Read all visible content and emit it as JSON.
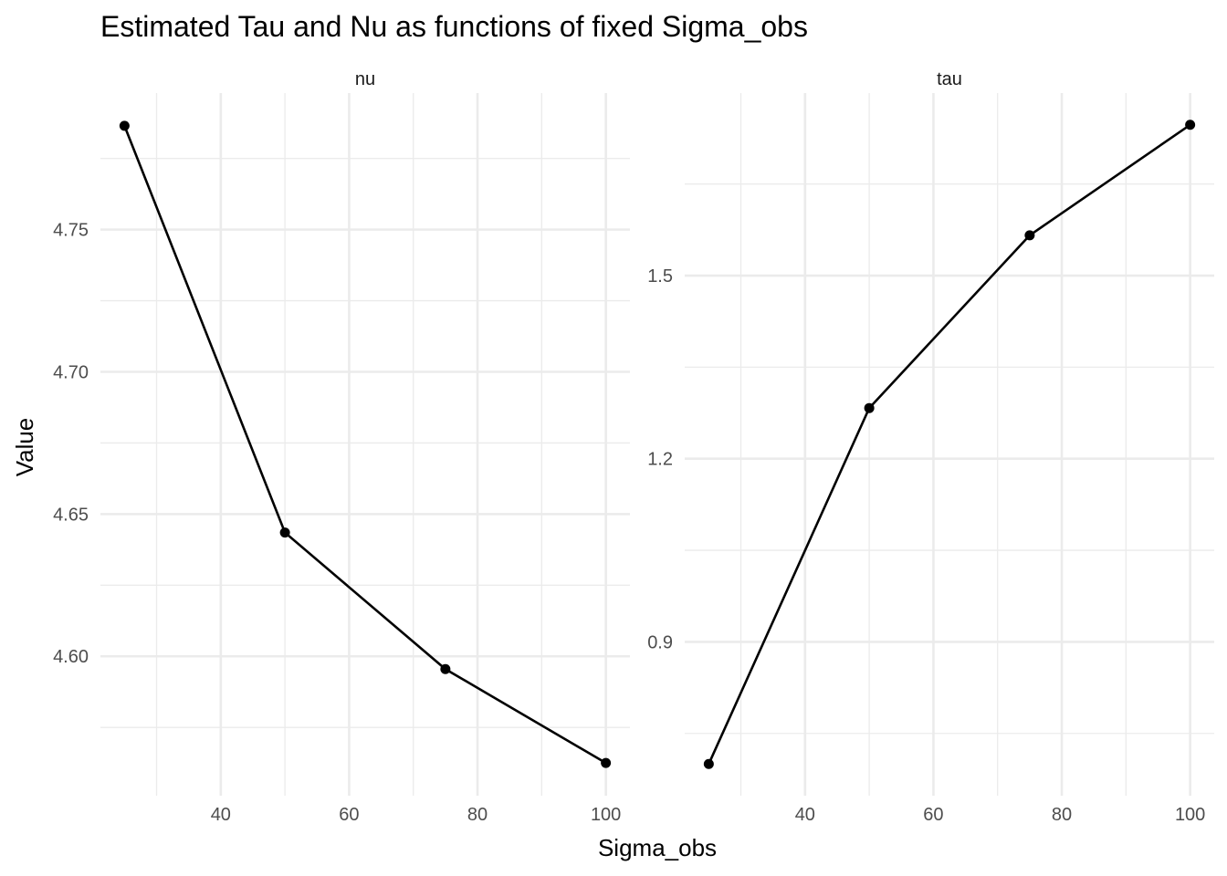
{
  "chart_data": {
    "type": "line",
    "title": "Estimated Tau and Nu as functions of fixed Sigma_obs",
    "xlabel": "Sigma_obs",
    "ylabel": "Value",
    "grid": true,
    "legend": "none",
    "colors": {
      "line": "#000000",
      "grid": "#ebebeb"
    },
    "panels": [
      {
        "facet": "nu",
        "x": [
          25,
          50,
          75,
          100
        ],
        "y": [
          4.7865,
          4.6435,
          4.5955,
          4.5625
        ],
        "xlim": [
          21.25,
          103.75
        ],
        "ylim": [
          4.551,
          4.798
        ],
        "xticks": [
          40,
          60,
          80,
          100
        ],
        "xtick_labels": [
          "40",
          "60",
          "80",
          "100"
        ],
        "xminor": [
          30,
          50,
          70,
          90
        ],
        "yticks": [
          4.6,
          4.65,
          4.7,
          4.75
        ],
        "ytick_labels": [
          "4.60",
          "4.65",
          "4.70",
          "4.75"
        ],
        "yminor": [
          4.575,
          4.625,
          4.675,
          4.725,
          4.775
        ]
      },
      {
        "facet": "tau",
        "x": [
          25,
          50,
          75,
          100
        ],
        "y": [
          0.7,
          1.283,
          1.566,
          1.747
        ],
        "xlim": [
          21.25,
          103.75
        ],
        "ylim": [
          0.648,
          1.799
        ],
        "xticks": [
          40,
          60,
          80,
          100
        ],
        "xtick_labels": [
          "40",
          "60",
          "80",
          "100"
        ],
        "xminor": [
          30,
          50,
          70,
          90
        ],
        "yticks": [
          0.9,
          1.2,
          1.5
        ],
        "ytick_labels": [
          "0.9",
          "1.2",
          "1.5"
        ],
        "yminor": [
          0.75,
          1.05,
          1.35,
          1.65
        ]
      }
    ]
  }
}
